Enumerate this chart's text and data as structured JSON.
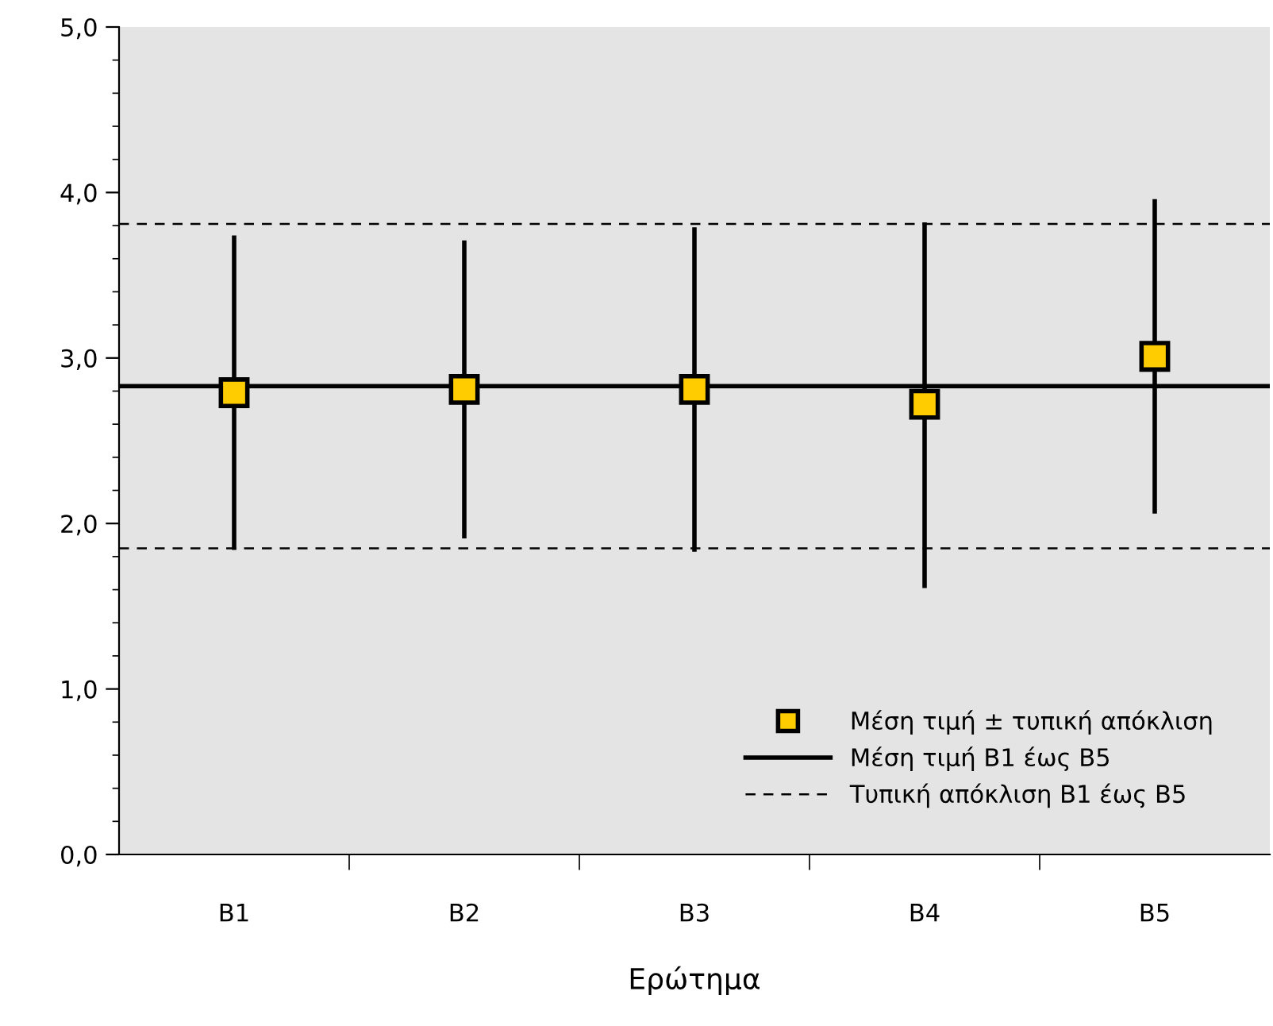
{
  "chart_data": {
    "type": "scatter",
    "xlabel": "Ερώτημα",
    "categories": [
      "B1",
      "B2",
      "B3",
      "B4",
      "B5"
    ],
    "series": [
      {
        "name": "Μέση τιμή ± τυπική απόκλιση",
        "color": "#ffcc00",
        "values": [
          2.79,
          2.81,
          2.81,
          2.72,
          3.01
        ],
        "errors": [
          [
            1.84,
            3.74
          ],
          [
            1.91,
            3.71
          ],
          [
            1.83,
            3.79
          ],
          [
            1.61,
            3.82
          ],
          [
            2.06,
            3.96
          ]
        ]
      }
    ],
    "marker": "square",
    "ylim": [
      0,
      5
    ],
    "yticks": [
      {
        "value": 0,
        "label": "0,0"
      },
      {
        "value": 1,
        "label": "1,0"
      },
      {
        "value": 2,
        "label": "2,0"
      },
      {
        "value": 3,
        "label": "3,0"
      },
      {
        "value": 4,
        "label": "4,0"
      },
      {
        "value": 5,
        "label": "5,0"
      }
    ],
    "ref_lines": [
      {
        "axis": "y",
        "value": 2.83,
        "label": "Μέση τιμή B1 έως B5",
        "color": "#000000",
        "line_style": "solid"
      },
      {
        "axis": "y",
        "value": 3.81,
        "label": "Τυπική απόκλιση B1 έως B5",
        "color": "#000000",
        "line_style": "dashed"
      },
      {
        "axis": "y",
        "value": 1.85,
        "label": null,
        "color": "#000000",
        "line_style": "dashed"
      }
    ],
    "grid": false,
    "legend": "bottom right"
  }
}
